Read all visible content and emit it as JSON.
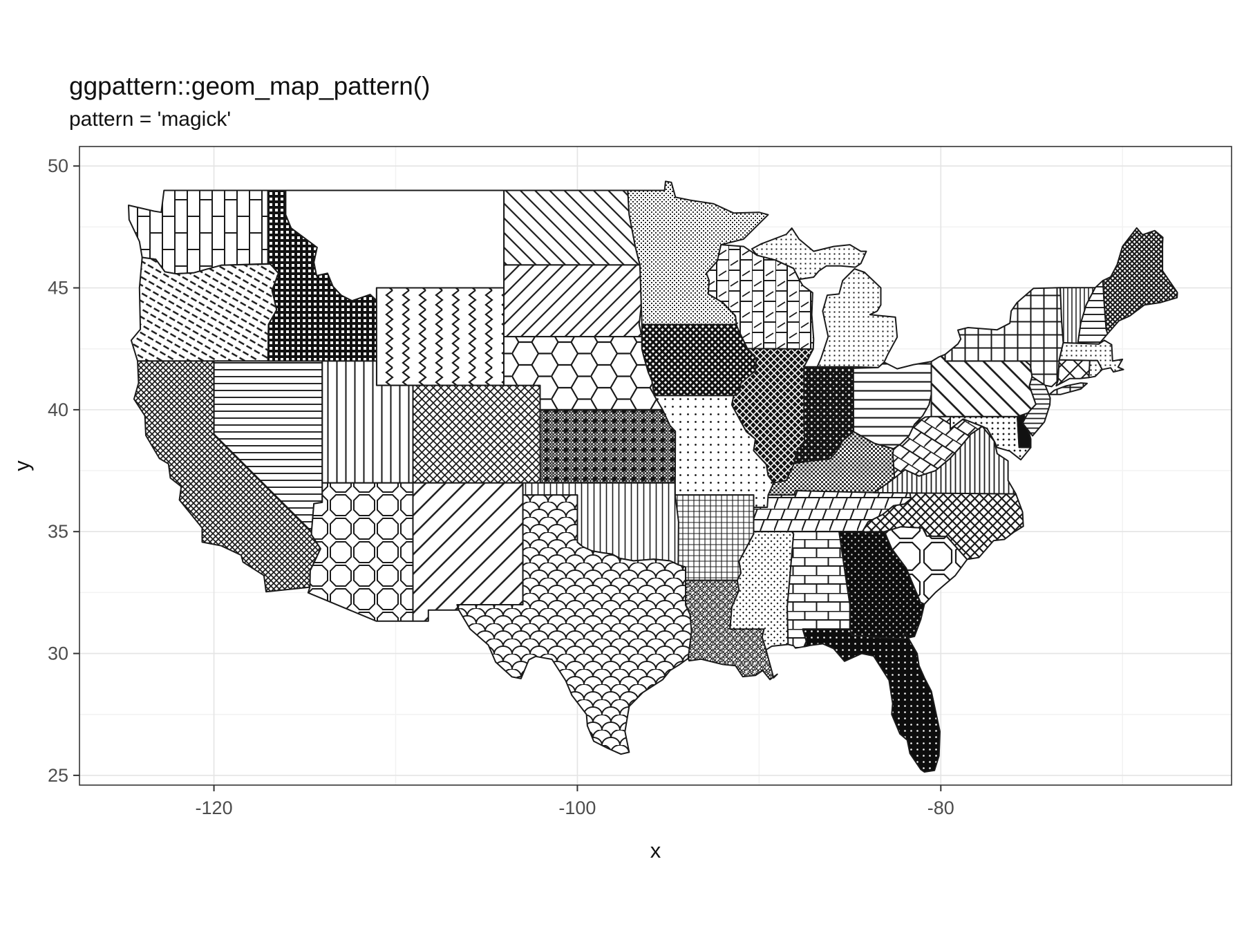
{
  "title": "ggpattern::geom_map_pattern()",
  "subtitle": "pattern = 'magick'",
  "colors": {
    "background": "#ffffff",
    "panel_background": "#ffffff",
    "panel_border": "#333333",
    "grid_major": "#e4e4e4",
    "grid_minor": "#f2f2f2",
    "axis_text": "#4d4d4d",
    "tick_mark": "#333333",
    "state_outline": "#1a1a1a",
    "pattern_ink": "#1a1a1a"
  },
  "chart_data": {
    "type": "map",
    "title": "ggpattern::geom_map_pattern()",
    "subtitle": "pattern = 'magick'",
    "region": "contiguous United States choropleth, one magick pattern fill per state",
    "projection": "longitude-latitude",
    "xlabel": "x",
    "ylabel": "y",
    "xlim": [
      -127.4,
      -64.0
    ],
    "ylim": [
      24.6,
      50.8
    ],
    "x_ticks": [
      -120,
      -100,
      -80
    ],
    "x_tick_labels": [
      "-120",
      "-100",
      "-80"
    ],
    "y_ticks": [
      50,
      45,
      40,
      35,
      30,
      25
    ],
    "y_tick_labels": [
      "50",
      "45",
      "40",
      "35",
      "30",
      "25"
    ],
    "x_minor_ticks": [
      -110,
      -90,
      -70
    ],
    "y_minor_ticks": [
      47.5,
      42.5,
      37.5,
      32.5,
      27.5
    ],
    "grid": true,
    "legend": false,
    "states": [
      {
        "name": "washington",
        "pattern": "vertical-bricks"
      },
      {
        "name": "oregon",
        "pattern": "dash-diag-30"
      },
      {
        "name": "california",
        "pattern": "weave-fine"
      },
      {
        "name": "nevada",
        "pattern": "horizontal-md"
      },
      {
        "name": "idaho",
        "pattern": "dark-grid-dense"
      },
      {
        "name": "montana",
        "pattern": "none-white"
      },
      {
        "name": "wyoming",
        "pattern": "vertical-zigzag"
      },
      {
        "name": "utah",
        "pattern": "vertical-md"
      },
      {
        "name": "colorado",
        "pattern": "crosshatch-sm"
      },
      {
        "name": "arizona",
        "pattern": "octagons-sm"
      },
      {
        "name": "new-mexico",
        "pattern": "diag-up-wide"
      },
      {
        "name": "north-dakota",
        "pattern": "diag-down-md"
      },
      {
        "name": "south-dakota",
        "pattern": "diag-up-md"
      },
      {
        "name": "nebraska",
        "pattern": "hexagons"
      },
      {
        "name": "kansas",
        "pattern": "gray-mesh-diamond-dark"
      },
      {
        "name": "oklahoma",
        "pattern": "vertical-thin"
      },
      {
        "name": "texas",
        "pattern": "fishscales"
      },
      {
        "name": "minnesota",
        "pattern": "stipple-dense"
      },
      {
        "name": "iowa",
        "pattern": "dark-weave-md"
      },
      {
        "name": "missouri",
        "pattern": "dot-grid-sparse"
      },
      {
        "name": "arkansas",
        "pattern": "grid-fine"
      },
      {
        "name": "louisiana",
        "pattern": "gray-mesh-white-dots"
      },
      {
        "name": "wisconsin",
        "pattern": "vertical-shingle"
      },
      {
        "name": "illinois",
        "pattern": "dark-x-weave"
      },
      {
        "name": "indiana",
        "pattern": "dark-diamond-mesh"
      },
      {
        "name": "michigan",
        "pattern": "dot-grid-md"
      },
      {
        "name": "ohio",
        "pattern": "horizontal-wide"
      },
      {
        "name": "kentucky",
        "pattern": "gray50-checker"
      },
      {
        "name": "tennessee",
        "pattern": "slanted-bricks"
      },
      {
        "name": "mississippi",
        "pattern": "diamond-dots-sparse"
      },
      {
        "name": "alabama",
        "pattern": "bricks"
      },
      {
        "name": "georgia",
        "pattern": "black-sparse-dots"
      },
      {
        "name": "florida",
        "pattern": "black-dot-grid"
      },
      {
        "name": "south-carolina",
        "pattern": "octagons-lg"
      },
      {
        "name": "north-carolina",
        "pattern": "diamond-lattice-md"
      },
      {
        "name": "virginia",
        "pattern": "vertical-dense"
      },
      {
        "name": "west-virginia",
        "pattern": "diag-shingle"
      },
      {
        "name": "maryland",
        "pattern": "diamond-dots-md"
      },
      {
        "name": "delaware",
        "pattern": "solid-black"
      },
      {
        "name": "new-jersey",
        "pattern": "horizontal-dense"
      },
      {
        "name": "pennsylvania",
        "pattern": "diag-down-thick"
      },
      {
        "name": "new-york",
        "pattern": "square-grid"
      },
      {
        "name": "connecticut",
        "pattern": "diamond-lattice-lg"
      },
      {
        "name": "rhode-island",
        "pattern": "dot-grid-md"
      },
      {
        "name": "massachusetts",
        "pattern": "dot-grid-md"
      },
      {
        "name": "vermont",
        "pattern": "vertical-xthin"
      },
      {
        "name": "new-hampshire",
        "pattern": "horizontal-md"
      },
      {
        "name": "maine",
        "pattern": "weave-md"
      }
    ]
  }
}
